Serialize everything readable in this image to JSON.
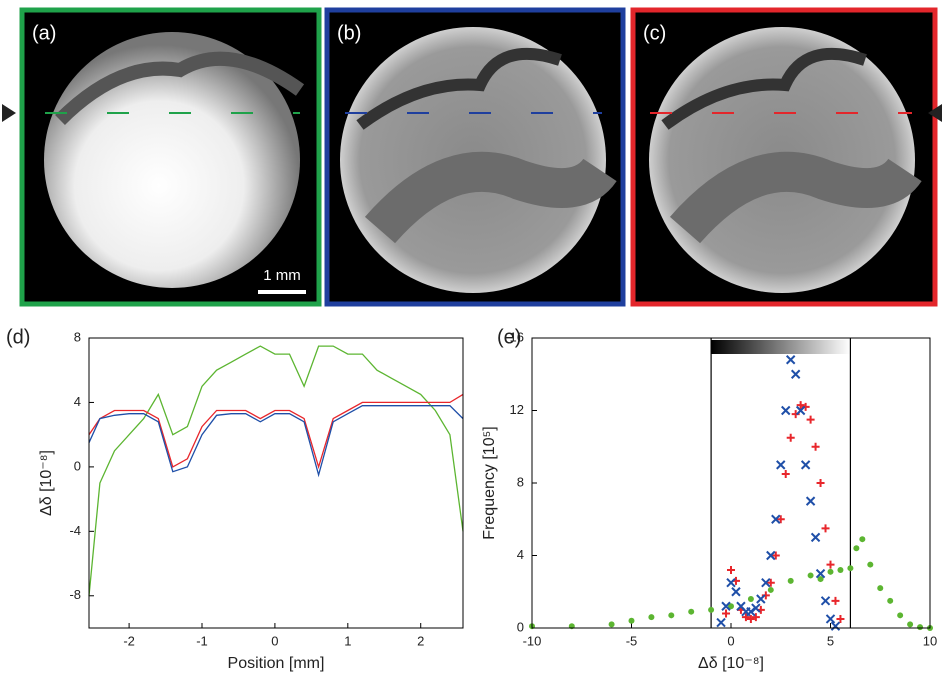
{
  "image_panels": {
    "labels": [
      "(a)",
      "(b)",
      "(c)"
    ],
    "scale_bar": "1 mm"
  },
  "chart_data": [
    {
      "type": "line",
      "panel_label": "(d)",
      "xlabel": "Position [mm]",
      "ylabel": "Δδ [10⁻⁸]",
      "xlim": [
        -2.55,
        2.58
      ],
      "ylim": [
        -10,
        8
      ],
      "xticks": [
        -2,
        -1,
        0,
        1,
        2
      ],
      "yticks": [
        -8,
        -4,
        0,
        4,
        8
      ],
      "x": [
        -2.55,
        -2.4,
        -2.2,
        -2.0,
        -1.8,
        -1.6,
        -1.4,
        -1.2,
        -1.0,
        -0.8,
        -0.6,
        -0.4,
        -0.2,
        0,
        0.2,
        0.4,
        0.6,
        0.8,
        1.0,
        1.2,
        1.4,
        1.6,
        1.8,
        2.0,
        2.2,
        2.4,
        2.58
      ],
      "series": [
        {
          "color": "#5cb531",
          "values": [
            -8,
            -1,
            1,
            2,
            3,
            4.5,
            2,
            2.5,
            5,
            6,
            6.5,
            7,
            7.5,
            7,
            7,
            5,
            7.5,
            7.5,
            7,
            7,
            6,
            5.5,
            5,
            4.5,
            3.5,
            2,
            -4
          ]
        },
        {
          "color": "#e8262b",
          "values": [
            2,
            3,
            3.5,
            3.5,
            3.5,
            3,
            0,
            0.5,
            2.5,
            3.5,
            3.5,
            3.5,
            3,
            3.5,
            3.5,
            3,
            0,
            3,
            3.5,
            4,
            4,
            4,
            4,
            4,
            4,
            4,
            4.5
          ]
        },
        {
          "color": "#1f4fa8",
          "values": [
            1.5,
            3,
            3.2,
            3.3,
            3.3,
            2.8,
            -0.3,
            0,
            2,
            3.2,
            3.3,
            3.3,
            2.8,
            3.3,
            3.3,
            2.8,
            -0.5,
            2.8,
            3.3,
            3.8,
            3.8,
            3.8,
            3.8,
            3.8,
            3.8,
            3.8,
            3
          ]
        }
      ]
    },
    {
      "type": "scatter",
      "panel_label": "(e)",
      "xlabel": "Δδ [10⁻⁸]",
      "ylabel": "Frequency [10⁵]",
      "xlim": [
        -10,
        10
      ],
      "ylim": [
        0,
        16
      ],
      "xticks": [
        -10,
        -5,
        0,
        5,
        10
      ],
      "yticks": [
        0,
        4,
        8,
        12,
        16
      ],
      "vlines": [
        -1,
        6
      ],
      "series": [
        {
          "color": "#5cb531",
          "marker": "o",
          "x": [
            -10,
            -8,
            -6,
            -5,
            -4,
            -3,
            -2,
            -1,
            0,
            1,
            2,
            3,
            4,
            4.5,
            5,
            5.5,
            6,
            6.3,
            6.6,
            7,
            7.5,
            8,
            8.5,
            9,
            9.5,
            10
          ],
          "values": [
            0.1,
            0.1,
            0.2,
            0.4,
            0.6,
            0.7,
            0.9,
            1,
            1.2,
            1.6,
            2.1,
            2.6,
            2.9,
            2.7,
            3.1,
            3.2,
            3.3,
            4.4,
            4.9,
            3.5,
            2.2,
            1.5,
            0.7,
            0.2,
            0.05,
            0
          ]
        },
        {
          "color": "#e8262b",
          "marker": "+",
          "x": [
            -0.25,
            0,
            0.25,
            0.5,
            0.75,
            1.0,
            1.25,
            1.5,
            1.75,
            2.0,
            2.25,
            2.5,
            2.75,
            3.0,
            3.25,
            3.5,
            3.75,
            4.0,
            4.25,
            4.5,
            4.75,
            5.0,
            5.25,
            5.5
          ],
          "values": [
            0.8,
            3.2,
            2.6,
            1.0,
            0.6,
            0.5,
            0.6,
            1.0,
            1.8,
            2.5,
            4,
            6,
            8.5,
            10.5,
            11.8,
            12.3,
            12.2,
            11.5,
            10,
            8,
            5.5,
            3.5,
            1.5,
            0.5
          ]
        },
        {
          "color": "#1f4fa8",
          "marker": "x",
          "x": [
            -0.5,
            -0.25,
            0,
            0.25,
            0.5,
            0.75,
            1.0,
            1.25,
            1.5,
            1.75,
            2.0,
            2.25,
            2.5,
            2.75,
            3.0,
            3.25,
            3.5,
            3.75,
            4.0,
            4.25,
            4.5,
            4.75,
            5.0,
            5.25
          ],
          "values": [
            0.3,
            1.2,
            2.5,
            2,
            1.2,
            0.9,
            0.9,
            1.1,
            1.6,
            2.5,
            4,
            6,
            9,
            12,
            14.8,
            14,
            12,
            9,
            7,
            5,
            3,
            1.5,
            0.5,
            0.1
          ]
        }
      ]
    }
  ]
}
